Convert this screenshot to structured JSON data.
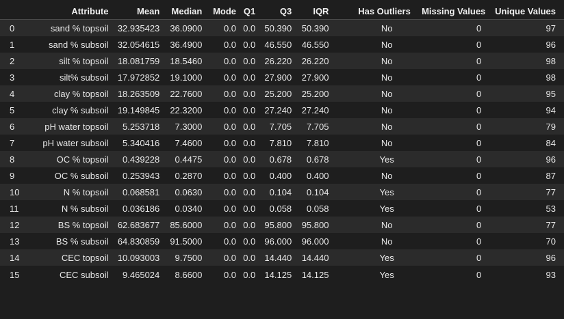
{
  "table": {
    "columns": [
      "",
      "Attribute",
      "Mean",
      "Median",
      "Mode",
      "Q1",
      "Q3",
      "IQR",
      "Has Outliers",
      "Missing Values",
      "Unique Values"
    ],
    "rows": [
      [
        "0",
        "sand % topsoil",
        "32.935423",
        "36.0900",
        "0.0",
        "0.0",
        "50.390",
        "50.390",
        "No",
        "0",
        "97"
      ],
      [
        "1",
        "sand % subsoil",
        "32.054615",
        "36.4900",
        "0.0",
        "0.0",
        "46.550",
        "46.550",
        "No",
        "0",
        "96"
      ],
      [
        "2",
        "silt % topsoil",
        "18.081759",
        "18.5460",
        "0.0",
        "0.0",
        "26.220",
        "26.220",
        "No",
        "0",
        "98"
      ],
      [
        "3",
        "silt% subsoil",
        "17.972852",
        "19.1000",
        "0.0",
        "0.0",
        "27.900",
        "27.900",
        "No",
        "0",
        "98"
      ],
      [
        "4",
        "clay % topsoil",
        "18.263509",
        "22.7600",
        "0.0",
        "0.0",
        "25.200",
        "25.200",
        "No",
        "0",
        "95"
      ],
      [
        "5",
        "clay % subsoil",
        "19.149845",
        "22.3200",
        "0.0",
        "0.0",
        "27.240",
        "27.240",
        "No",
        "0",
        "94"
      ],
      [
        "6",
        "pH water topsoil",
        "5.253718",
        "7.3000",
        "0.0",
        "0.0",
        "7.705",
        "7.705",
        "No",
        "0",
        "79"
      ],
      [
        "7",
        "pH water subsoil",
        "5.340416",
        "7.4600",
        "0.0",
        "0.0",
        "7.810",
        "7.810",
        "No",
        "0",
        "84"
      ],
      [
        "8",
        "OC % topsoil",
        "0.439228",
        "0.4475",
        "0.0",
        "0.0",
        "0.678",
        "0.678",
        "Yes",
        "0",
        "96"
      ],
      [
        "9",
        "OC % subsoil",
        "0.253943",
        "0.2870",
        "0.0",
        "0.0",
        "0.400",
        "0.400",
        "No",
        "0",
        "87"
      ],
      [
        "10",
        "N % topsoil",
        "0.068581",
        "0.0630",
        "0.0",
        "0.0",
        "0.104",
        "0.104",
        "Yes",
        "0",
        "77"
      ],
      [
        "11",
        "N % subsoil",
        "0.036186",
        "0.0340",
        "0.0",
        "0.0",
        "0.058",
        "0.058",
        "Yes",
        "0",
        "53"
      ],
      [
        "12",
        "BS % topsoil",
        "62.683677",
        "85.6000",
        "0.0",
        "0.0",
        "95.800",
        "95.800",
        "No",
        "0",
        "77"
      ],
      [
        "13",
        "BS % subsoil",
        "64.830859",
        "91.5000",
        "0.0",
        "0.0",
        "96.000",
        "96.000",
        "No",
        "0",
        "70"
      ],
      [
        "14",
        "CEC topsoil",
        "10.093003",
        "9.7500",
        "0.0",
        "0.0",
        "14.440",
        "14.440",
        "Yes",
        "0",
        "96"
      ],
      [
        "15",
        "CEC subsoil",
        "9.465024",
        "8.6600",
        "0.0",
        "0.0",
        "14.125",
        "14.125",
        "Yes",
        "0",
        "93"
      ]
    ]
  }
}
